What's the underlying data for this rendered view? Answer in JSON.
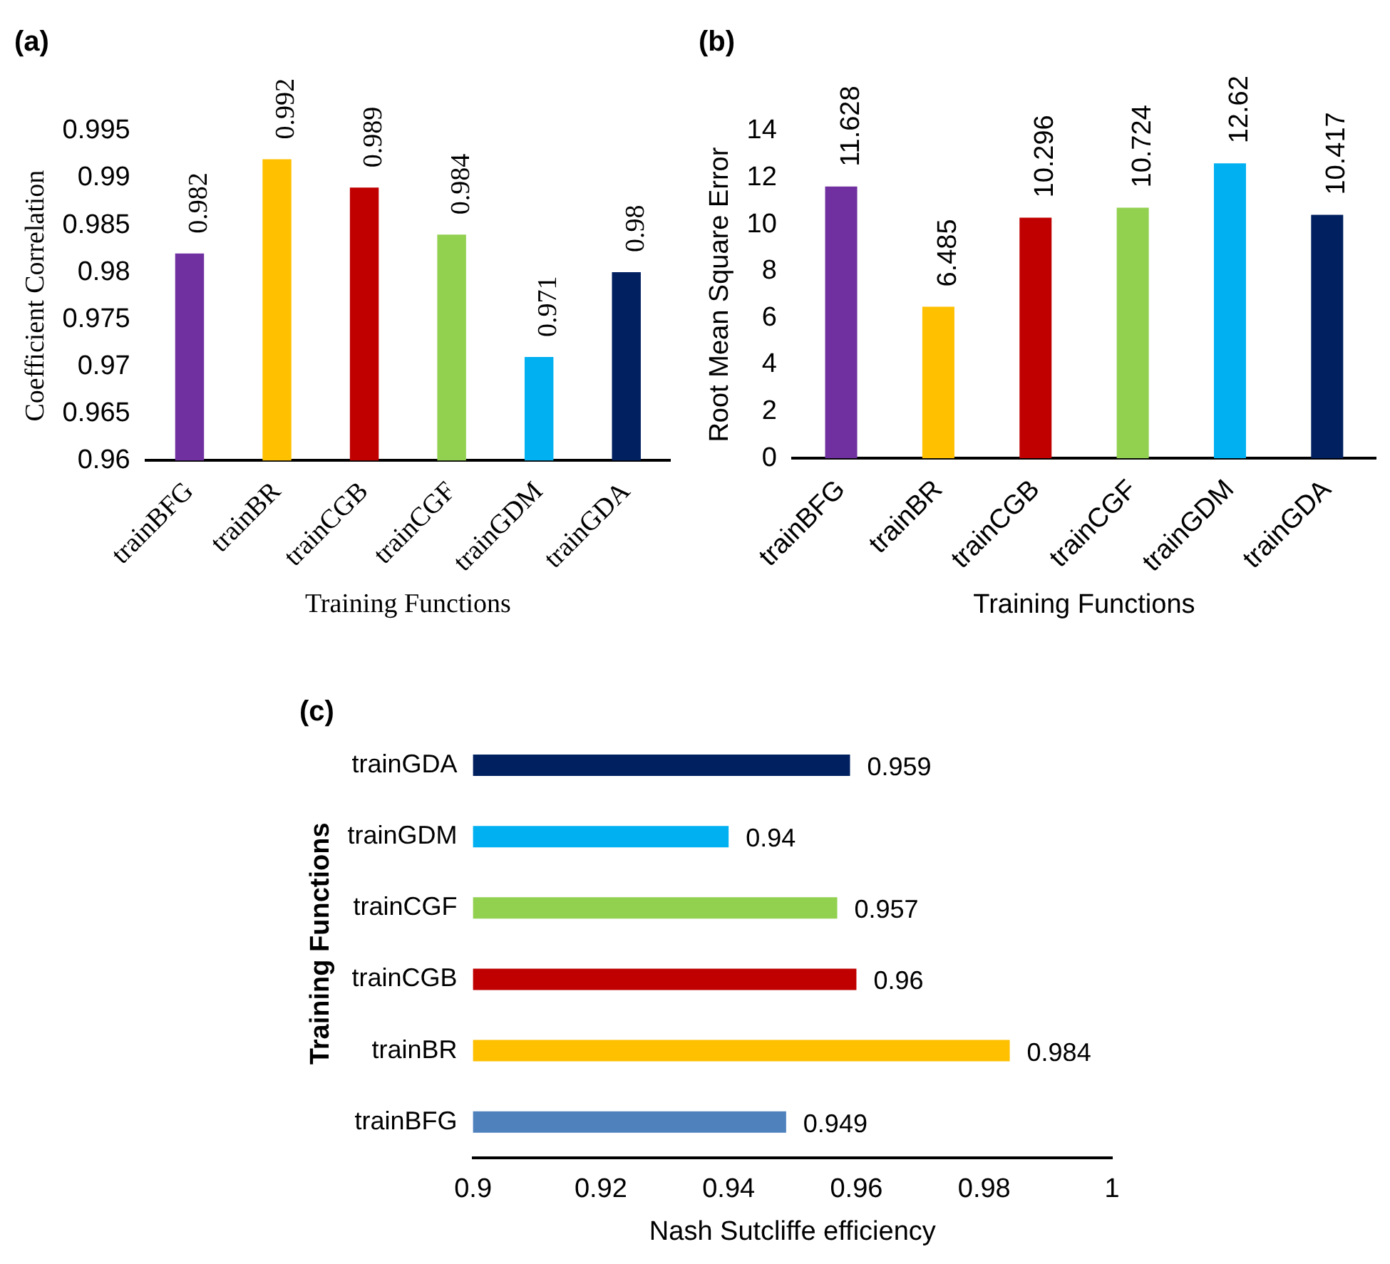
{
  "chart_data": [
    {
      "type": "bar",
      "title": "(a)",
      "xlabel": "Training Functions",
      "ylabel": "Coefficient Correlation",
      "categories": [
        "trainBFG",
        "trainBR",
        "trainCGB",
        "trainCGF",
        "trainGDM",
        "trainGDA"
      ],
      "values": [
        0.982,
        0.992,
        0.989,
        0.984,
        0.971,
        0.98
      ],
      "colors": [
        "#7030a0",
        "#ffc000",
        "#c00000",
        "#92d050",
        "#00b0f0",
        "#002060"
      ],
      "ylim": [
        0.96,
        0.995
      ],
      "yticks": [
        0.96,
        0.965,
        0.97,
        0.975,
        0.98,
        0.985,
        0.99,
        0.995
      ],
      "data_labels": true
    },
    {
      "type": "bar",
      "title": "(b)",
      "xlabel": "Training Functions",
      "ylabel": "Root Mean Square Error",
      "categories": [
        "trainBFG",
        "trainBR",
        "trainCGB",
        "trainCGF",
        "trainGDM",
        "trainGDA"
      ],
      "values": [
        11.628,
        6.485,
        10.296,
        10.724,
        12.62,
        10.417
      ],
      "colors": [
        "#7030a0",
        "#ffc000",
        "#c00000",
        "#92d050",
        "#00b0f0",
        "#002060"
      ],
      "ylim": [
        0,
        14
      ],
      "yticks": [
        0,
        2,
        4,
        6,
        8,
        10,
        12,
        14
      ],
      "data_labels": true
    },
    {
      "type": "bar",
      "orientation": "horizontal",
      "title": "(c)",
      "xlabel": "Nash Sutcliffe efficiency",
      "ylabel": "Training Functions",
      "categories": [
        "trainGDA",
        "trainGDM",
        "trainCGF",
        "trainCGB",
        "trainBR",
        "trainBFG"
      ],
      "values": [
        0.959,
        0.94,
        0.957,
        0.96,
        0.984,
        0.949
      ],
      "colors": [
        "#002060",
        "#00b0f0",
        "#92d050",
        "#c00000",
        "#ffc000",
        "#4f81bd"
      ],
      "xlim": [
        0.9,
        1
      ],
      "xticks": [
        0.9,
        0.92,
        0.94,
        0.96,
        0.98,
        1
      ],
      "data_labels": true
    }
  ]
}
